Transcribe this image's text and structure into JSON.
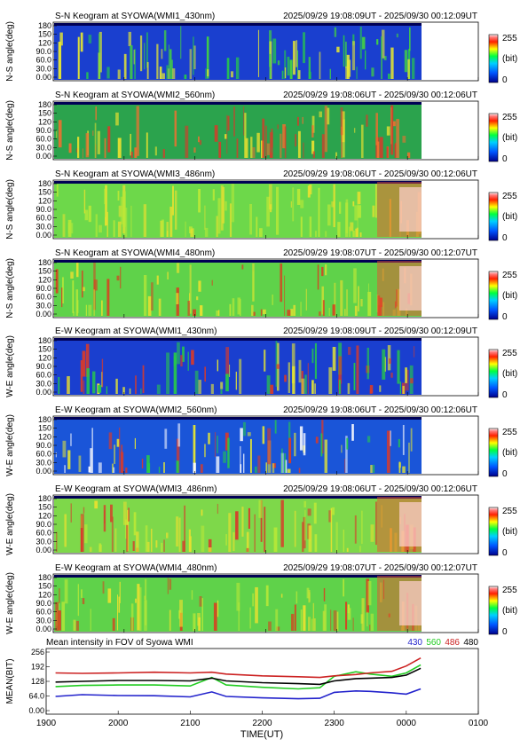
{
  "panels": [
    {
      "title": "S-N Keogram at SYOWA(WMI1_430nm)",
      "time_range": "2025/09/29 19:08:09UT - 2025/09/30 00:12:09UT",
      "ylabel": "N-S angle(deg)",
      "yticks": [
        "180",
        "150",
        "120",
        "90.0",
        "60.0",
        "30.0",
        "0.00"
      ],
      "cbar": [
        "255",
        "(bit)",
        "0"
      ]
    },
    {
      "title": "S-N Keogram at SYOWA(WMI2_560nm)",
      "time_range": "2025/09/29 19:08:06UT - 2025/09/30 00:12:06UT",
      "ylabel": "N-S angle(deg)",
      "yticks": [
        "180",
        "150",
        "120",
        "90.0",
        "60.0",
        "30.0",
        "0.00"
      ],
      "cbar": [
        "255",
        "(bit)",
        "0"
      ]
    },
    {
      "title": "S-N Keogram at SYOWA(WMI3_486nm)",
      "time_range": "2025/09/29 19:08:06UT - 2025/09/30 00:12:06UT",
      "ylabel": "N-S angle(deg)",
      "yticks": [
        "180",
        "150",
        "120",
        "90.0",
        "60.0",
        "30.0",
        "0.00"
      ],
      "cbar": [
        "255",
        "(bit)",
        "0"
      ]
    },
    {
      "title": "S-N Keogram at SYOWA(WMI4_480nm)",
      "time_range": "2025/09/29 19:08:07UT - 2025/09/30 00:12:07UT",
      "ylabel": "N-S angle(deg)",
      "yticks": [
        "180",
        "150",
        "120",
        "90.0",
        "60.0",
        "30.0",
        "0.00"
      ],
      "cbar": [
        "255",
        "(bit)",
        "0"
      ]
    },
    {
      "title": "E-W Keogram at SYOWA(WMI1_430nm)",
      "time_range": "2025/09/29 19:08:09UT - 2025/09/30 00:12:09UT",
      "ylabel": "W-E angle(deg)",
      "yticks": [
        "180",
        "150",
        "120",
        "90.0",
        "60.0",
        "30.0",
        "0.00"
      ],
      "cbar": [
        "255",
        "(bit)",
        "0"
      ]
    },
    {
      "title": "E-W Keogram at SYOWA(WMI2_560nm)",
      "time_range": "2025/09/29 19:08:06UT - 2025/09/30 00:12:06UT",
      "ylabel": "W-E angle(deg)",
      "yticks": [
        "180",
        "150",
        "120",
        "90.0",
        "60.0",
        "30.0",
        "0.00"
      ],
      "cbar": [
        "255",
        "(bit)",
        "0"
      ]
    },
    {
      "title": "E-W Keogram at SYOWA(WMI3_486nm)",
      "time_range": "2025/09/29 19:08:06UT - 2025/09/30 00:12:06UT",
      "ylabel": "W-E angle(deg)",
      "yticks": [
        "180",
        "150",
        "120",
        "90.0",
        "60.0",
        "30.0",
        "0.00"
      ],
      "cbar": [
        "255",
        "(bit)",
        "0"
      ]
    },
    {
      "title": "E-W Keogram at SYOWA(WMI4_480nm)",
      "time_range": "2025/09/29 19:08:07UT - 2025/09/30 00:12:07UT",
      "ylabel": "W-E angle(deg)",
      "yticks": [
        "180",
        "150",
        "120",
        "90.0",
        "60.0",
        "30.0",
        "0.00"
      ],
      "cbar": [
        "255",
        "(bit)",
        "0"
      ]
    }
  ],
  "chart_data": {
    "type": "line",
    "title": "Mean intensity in FOV of Syowa WMI",
    "xlabel": "TIME(UT)",
    "ylabel": "MEAN(BIT)",
    "xticks": [
      "1900",
      "2000",
      "2100",
      "2200",
      "2300",
      "0000",
      "0100"
    ],
    "yticks": [
      "256",
      "192",
      "128",
      "64.0",
      "0.00"
    ],
    "ylim": [
      0,
      256
    ],
    "x_hours": [
      19.13,
      19.5,
      20.0,
      20.5,
      21.0,
      21.3,
      21.5,
      22.0,
      22.5,
      22.8,
      23.0,
      23.3,
      23.5,
      23.8,
      24.0,
      24.2
    ],
    "series": [
      {
        "name": "430",
        "color": "#2222cc",
        "values": [
          62,
          70,
          66,
          65,
          60,
          82,
          62,
          56,
          52,
          54,
          80,
          86,
          84,
          78,
          72,
          95
        ]
      },
      {
        "name": "560",
        "color": "#22cc22",
        "values": [
          105,
          110,
          112,
          112,
          108,
          145,
          112,
          102,
          95,
          100,
          150,
          170,
          160,
          150,
          165,
          200
        ]
      },
      {
        "name": "486",
        "color": "#cc2222",
        "values": [
          165,
          163,
          165,
          168,
          165,
          168,
          160,
          152,
          148,
          145,
          152,
          158,
          165,
          172,
          195,
          230
        ]
      },
      {
        "name": "480",
        "color": "#000000",
        "values": [
          125,
          128,
          132,
          132,
          130,
          142,
          130,
          122,
          118,
          115,
          130,
          140,
          142,
          145,
          155,
          185
        ]
      }
    ],
    "colorbar": {
      "min": "0",
      "max": "255",
      "unit": "(bit)"
    }
  }
}
